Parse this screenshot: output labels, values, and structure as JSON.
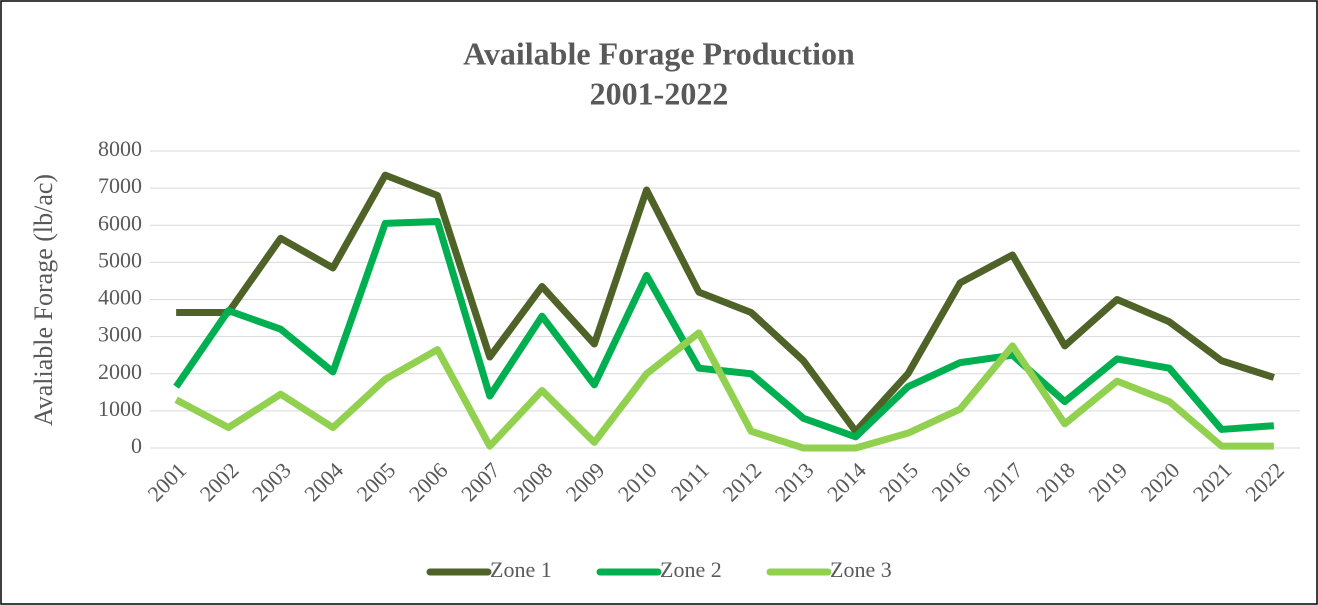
{
  "chart_data": {
    "type": "line",
    "title": "Available Forage Production",
    "subtitle": "2001-2022",
    "y_label": "Avaliable Forage (lb/ac)",
    "categories": [
      "2001",
      "2002",
      "2003",
      "2004",
      "2005",
      "2006",
      "2007",
      "2008",
      "2009",
      "2010",
      "2011",
      "2012",
      "2013",
      "2014",
      "2015",
      "2016",
      "2017",
      "2018",
      "2019",
      "2020",
      "2021",
      "2022"
    ],
    "series": [
      {
        "name": "Zone 1",
        "color": "#4f6228",
        "values": [
          3650,
          3650,
          5650,
          4850,
          7350,
          6800,
          2450,
          4350,
          2800,
          6950,
          4200,
          3650,
          2350,
          450,
          2000,
          4450,
          5200,
          2750,
          4000,
          3400,
          2350,
          1900
        ]
      },
      {
        "name": "Zone 2",
        "color": "#00b050",
        "values": [
          1650,
          3700,
          3200,
          2050,
          6050,
          6100,
          1400,
          3550,
          1700,
          4650,
          2150,
          2000,
          800,
          300,
          1650,
          2300,
          2500,
          1250,
          2400,
          2150,
          500,
          600
        ]
      },
      {
        "name": "Zone 3",
        "color": "#92d050",
        "values": [
          1300,
          550,
          1450,
          550,
          1850,
          2650,
          50,
          1550,
          150,
          2000,
          3100,
          450,
          0,
          0,
          400,
          1050,
          2750,
          650,
          1800,
          1250,
          50,
          50
        ]
      }
    ],
    "ylim": [
      0,
      8000
    ],
    "yticks": [
      0,
      1000,
      2000,
      3000,
      4000,
      5000,
      6000,
      7000,
      8000
    ],
    "grid": true,
    "legend": "bottom"
  }
}
